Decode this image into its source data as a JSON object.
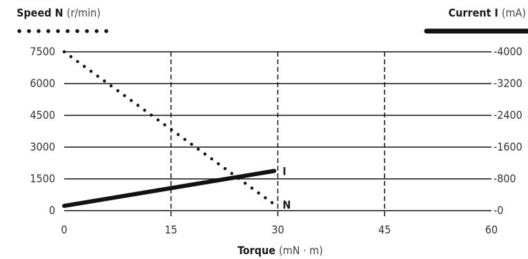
{
  "chart_data": {
    "type": "line",
    "title": "",
    "xlabel": "Torque",
    "xlabel_unit": "(mN · m)",
    "ylabel_left": "Speed N",
    "ylabel_left_unit": "(r/min)",
    "ylabel_right": "Current I",
    "ylabel_right_unit": "(mA)",
    "xlim": [
      0,
      60
    ],
    "ylim_left": [
      0,
      7500
    ],
    "ylim_right": [
      0,
      4000
    ],
    "x_ticks": [
      "0",
      "15",
      "30",
      "45",
      "60"
    ],
    "y_left_ticks": [
      "0",
      "1500",
      "3000",
      "4500",
      "6000",
      "7500"
    ],
    "y_right_ticks": [
      "0",
      "800",
      "1600",
      "2400",
      "3200",
      "4000"
    ],
    "grid": {
      "horizontal": "solid",
      "vertical": "dashed"
    },
    "legend": {
      "position": "top",
      "speed_style": "dotted",
      "current_style": "thick-solid"
    },
    "series": [
      {
        "name": "N",
        "axis": "left",
        "style": "dotted",
        "color": "#111111",
        "x": [
          0,
          29.5
        ],
        "y": [
          7500,
          300
        ]
      },
      {
        "name": "I",
        "axis": "right",
        "style": "solid",
        "color": "#111111",
        "x": [
          0,
          29.5
        ],
        "y": [
          120,
          1000
        ]
      }
    ]
  }
}
